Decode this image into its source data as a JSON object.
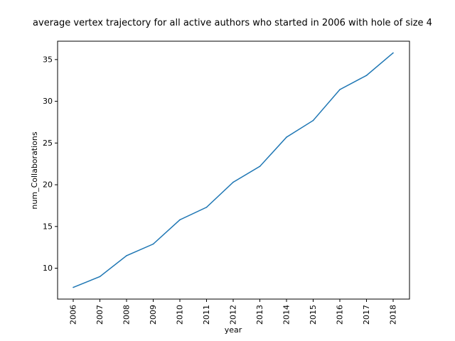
{
  "chart_data": {
    "type": "line",
    "title": "average vertex trajectory for all active authors who started in 2006 with hole of size 4",
    "xlabel": "year",
    "ylabel": "num_Collaborations",
    "x": [
      "2006",
      "2007",
      "2008",
      "2009",
      "2010",
      "2011",
      "2012",
      "2013",
      "2014",
      "2015",
      "2016",
      "2017",
      "2018"
    ],
    "series": [
      {
        "values": [
          7.7,
          9.0,
          11.5,
          12.9,
          15.8,
          17.3,
          20.3,
          22.2,
          25.7,
          27.7,
          31.4,
          33.1,
          35.8
        ],
        "color": "#1f77b4"
      }
    ],
    "yticks": [
      10,
      15,
      20,
      25,
      30,
      35
    ],
    "ylim": [
      6.3,
      37.2
    ],
    "grid": false,
    "legend": "none"
  }
}
